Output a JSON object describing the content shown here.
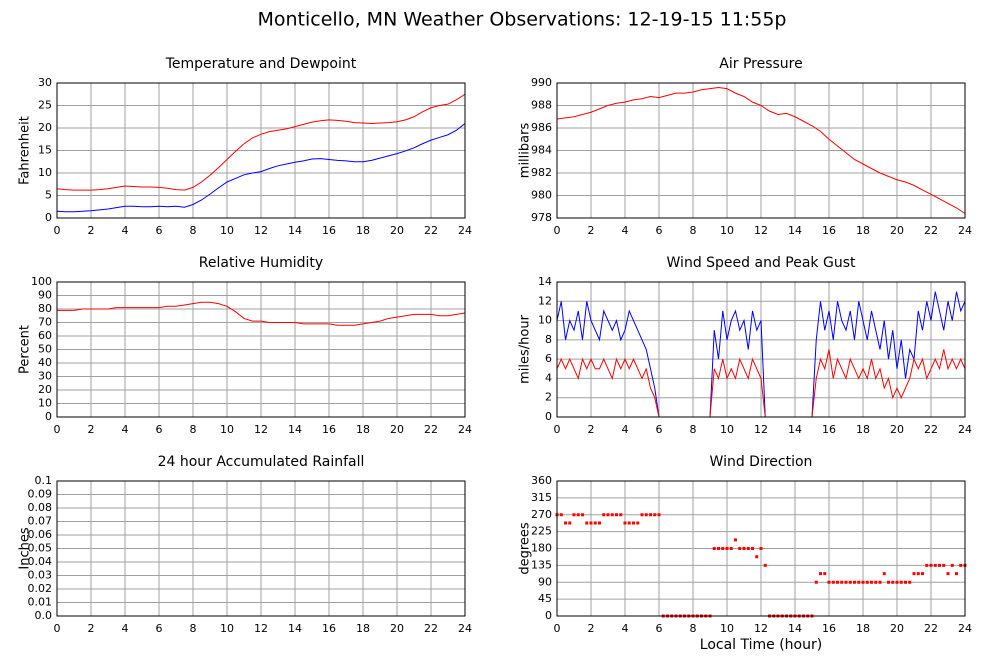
{
  "title": "Monticello, MN Weather Observations: 12-19-15 11:55p",
  "chart_data": [
    {
      "type": "line",
      "title": "Temperature and Dewpoint",
      "ylabel": "Fahrenheit",
      "grid": true,
      "xlim": [
        0,
        24
      ],
      "xticks": [
        0,
        2,
        4,
        6,
        8,
        10,
        12,
        14,
        16,
        18,
        20,
        22,
        24
      ],
      "ylim": [
        0,
        30
      ],
      "yticks": [
        0,
        5,
        10,
        15,
        20,
        25,
        30
      ],
      "x": [
        0,
        0.5,
        1,
        1.5,
        2,
        2.5,
        3,
        3.5,
        4,
        4.5,
        5,
        5.5,
        6,
        6.5,
        7,
        7.5,
        8,
        8.5,
        9,
        9.5,
        10,
        10.5,
        11,
        11.5,
        12,
        12.5,
        13,
        13.5,
        14,
        14.5,
        15,
        15.5,
        16,
        16.5,
        17,
        17.5,
        18,
        18.5,
        19,
        19.5,
        20,
        20.5,
        21,
        21.5,
        22,
        22.5,
        23,
        23.5,
        24
      ],
      "series": [
        {
          "color": "#ff0000",
          "values": [
            6.5,
            6.3,
            6.2,
            6.2,
            6.2,
            6.3,
            6.5,
            6.8,
            7.1,
            7.0,
            6.9,
            6.9,
            6.8,
            6.6,
            6.3,
            6.2,
            6.8,
            8.0,
            9.5,
            11.2,
            13.0,
            14.8,
            16.5,
            17.8,
            18.6,
            19.2,
            19.5,
            19.8,
            20.3,
            20.8,
            21.3,
            21.6,
            21.8,
            21.7,
            21.5,
            21.2,
            21.1,
            21.0,
            21.1,
            21.2,
            21.4,
            21.8,
            22.5,
            23.6,
            24.5,
            25.0,
            25.3,
            26.3,
            27.5
          ]
        },
        {
          "color": "#0000ff",
          "values": [
            1.5,
            1.4,
            1.4,
            1.5,
            1.6,
            1.8,
            2.0,
            2.3,
            2.6,
            2.6,
            2.5,
            2.5,
            2.6,
            2.5,
            2.6,
            2.4,
            3.0,
            4.0,
            5.3,
            6.7,
            8.0,
            8.8,
            9.6,
            10.0,
            10.3,
            11.0,
            11.6,
            12.0,
            12.4,
            12.7,
            13.1,
            13.2,
            13.0,
            12.8,
            12.7,
            12.5,
            12.5,
            12.8,
            13.3,
            13.8,
            14.3,
            14.9,
            15.6,
            16.5,
            17.3,
            17.9,
            18.5,
            19.5,
            21.0
          ]
        }
      ]
    },
    {
      "type": "line",
      "title": "Air Pressure",
      "ylabel": "millibars",
      "grid": true,
      "xlim": [
        0,
        24
      ],
      "xticks": [
        0,
        2,
        4,
        6,
        8,
        10,
        12,
        14,
        16,
        18,
        20,
        22,
        24
      ],
      "ylim": [
        978,
        990
      ],
      "yticks": [
        978,
        980,
        982,
        984,
        986,
        988,
        990
      ],
      "x": [
        0,
        0.5,
        1,
        1.5,
        2,
        2.5,
        3,
        3.5,
        4,
        4.5,
        5,
        5.5,
        6,
        6.5,
        7,
        7.5,
        8,
        8.5,
        9,
        9.5,
        10,
        10.5,
        11,
        11.5,
        12,
        12.5,
        13,
        13.5,
        14,
        14.5,
        15,
        15.5,
        16,
        16.5,
        17,
        17.5,
        18,
        18.5,
        19,
        19.5,
        20,
        20.5,
        21,
        21.5,
        22,
        22.5,
        23,
        23.5,
        24
      ],
      "series": [
        {
          "color": "#ff0000",
          "values": [
            986.8,
            986.9,
            987.0,
            987.2,
            987.4,
            987.7,
            988.0,
            988.2,
            988.3,
            988.5,
            988.6,
            988.8,
            988.7,
            988.9,
            989.1,
            989.1,
            989.2,
            989.4,
            989.5,
            989.6,
            989.5,
            989.1,
            988.8,
            988.3,
            988.0,
            987.5,
            987.2,
            987.3,
            987.0,
            986.6,
            986.2,
            985.7,
            985.0,
            984.4,
            983.8,
            983.2,
            982.8,
            982.4,
            982.0,
            981.7,
            981.4,
            981.2,
            980.9,
            980.5,
            980.1,
            979.7,
            979.3,
            978.9,
            978.4
          ]
        }
      ]
    },
    {
      "type": "line",
      "title": "Relative Humidity",
      "ylabel": "Percent",
      "grid": true,
      "xlim": [
        0,
        24
      ],
      "xticks": [
        0,
        2,
        4,
        6,
        8,
        10,
        12,
        14,
        16,
        18,
        20,
        22,
        24
      ],
      "ylim": [
        0,
        100
      ],
      "yticks": [
        0,
        10,
        20,
        30,
        40,
        50,
        60,
        70,
        80,
        90,
        100
      ],
      "x": [
        0,
        0.5,
        1,
        1.5,
        2,
        2.5,
        3,
        3.5,
        4,
        4.5,
        5,
        5.5,
        6,
        6.5,
        7,
        7.5,
        8,
        8.5,
        9,
        9.5,
        10,
        10.5,
        11,
        11.5,
        12,
        12.5,
        13,
        13.5,
        14,
        14.5,
        15,
        15.5,
        16,
        16.5,
        17,
        17.5,
        18,
        18.5,
        19,
        19.5,
        20,
        20.5,
        21,
        21.5,
        22,
        22.5,
        23,
        23.5,
        24
      ],
      "series": [
        {
          "color": "#ff0000",
          "values": [
            79,
            79,
            79,
            80,
            80,
            80,
            80,
            81,
            81,
            81,
            81,
            81,
            81,
            82,
            82,
            83,
            84,
            85,
            85,
            84,
            82,
            78,
            73,
            71,
            71,
            70,
            70,
            70,
            70,
            69,
            69,
            69,
            69,
            68,
            68,
            68,
            69,
            70,
            71,
            73,
            74,
            75,
            76,
            76,
            76,
            75,
            75,
            76,
            77
          ]
        }
      ]
    },
    {
      "type": "line",
      "title": "Wind Speed and Peak Gust",
      "ylabel": "miles/hour",
      "grid": true,
      "xlim": [
        0,
        24
      ],
      "xticks": [
        0,
        2,
        4,
        6,
        8,
        10,
        12,
        14,
        16,
        18,
        20,
        22,
        24
      ],
      "ylim": [
        0,
        14
      ],
      "yticks": [
        0,
        2,
        4,
        6,
        8,
        10,
        12,
        14
      ],
      "x": [
        0,
        0.25,
        0.5,
        0.75,
        1,
        1.25,
        1.5,
        1.75,
        2,
        2.25,
        2.5,
        2.75,
        3,
        3.25,
        3.5,
        3.75,
        4,
        4.25,
        4.5,
        4.75,
        5,
        5.25,
        5.5,
        5.75,
        6,
        6.25,
        6.5,
        6.75,
        7,
        7.25,
        7.5,
        7.75,
        8,
        8.25,
        8.5,
        8.75,
        9,
        9.25,
        9.5,
        9.75,
        10,
        10.25,
        10.5,
        10.75,
        11,
        11.25,
        11.5,
        11.75,
        12,
        12.25,
        12.5,
        12.75,
        13,
        13.25,
        13.5,
        13.75,
        14,
        14.25,
        14.5,
        14.75,
        15,
        15.25,
        15.5,
        15.75,
        16,
        16.25,
        16.5,
        16.75,
        17,
        17.25,
        17.5,
        17.75,
        18,
        18.25,
        18.5,
        18.75,
        19,
        19.25,
        19.5,
        19.75,
        20,
        20.25,
        20.5,
        20.75,
        21,
        21.25,
        21.5,
        21.75,
        22,
        22.25,
        22.5,
        22.75,
        23,
        23.25,
        23.5,
        23.75,
        24
      ],
      "series": [
        {
          "color": "#0000ff",
          "values": [
            10,
            12,
            8,
            10,
            9,
            11,
            8,
            12,
            10,
            9,
            8,
            11,
            10,
            9,
            10,
            8,
            9,
            11,
            10,
            9,
            8,
            7,
            5,
            3,
            0,
            0,
            0,
            0,
            0,
            0,
            0,
            0,
            0,
            0,
            0,
            0,
            0,
            9,
            6,
            11,
            8,
            10,
            11,
            9,
            10,
            7,
            11,
            9,
            10,
            0,
            0,
            0,
            0,
            0,
            0,
            0,
            0,
            0,
            0,
            0,
            0,
            8,
            12,
            9,
            11,
            8,
            12,
            10,
            9,
            11,
            8,
            12,
            10,
            8,
            11,
            9,
            7,
            10,
            6,
            9,
            5,
            8,
            4,
            7,
            6,
            11,
            9,
            12,
            10,
            13,
            11,
            9,
            12,
            10,
            13,
            11,
            12
          ]
        },
        {
          "color": "#ff0000",
          "values": [
            5,
            6,
            5,
            6,
            5,
            4,
            6,
            5,
            6,
            5,
            5,
            6,
            5,
            4,
            6,
            5,
            6,
            5,
            6,
            5,
            4,
            5,
            3,
            2,
            0,
            0,
            0,
            0,
            0,
            0,
            0,
            0,
            0,
            0,
            0,
            0,
            0,
            5,
            4,
            6,
            4,
            5,
            4,
            6,
            5,
            4,
            6,
            5,
            4,
            0,
            0,
            0,
            0,
            0,
            0,
            0,
            0,
            0,
            0,
            0,
            0,
            4,
            6,
            5,
            7,
            4,
            6,
            5,
            4,
            6,
            5,
            4,
            5,
            4,
            6,
            4,
            5,
            3,
            4,
            2,
            3,
            2,
            3,
            4,
            6,
            5,
            6,
            4,
            5,
            6,
            5,
            7,
            5,
            6,
            5,
            6,
            5
          ]
        }
      ]
    },
    {
      "type": "line",
      "title": "24 hour Accumulated Rainfall",
      "ylabel": "Inches",
      "grid": true,
      "xlim": [
        0,
        24
      ],
      "xticks": [
        0,
        2,
        4,
        6,
        8,
        10,
        12,
        14,
        16,
        18,
        20,
        22,
        24
      ],
      "ylim": [
        0,
        0.1
      ],
      "yticks": [
        {
          "value": 0,
          "label": "0.0"
        },
        0.01,
        0.02,
        0.03,
        0.04,
        0.05,
        0.06,
        0.07,
        0.08,
        0.09,
        0.1
      ],
      "x": [
        0,
        24
      ],
      "series": [
        {
          "color": "#ff0000",
          "values": [
            0,
            0
          ]
        }
      ]
    },
    {
      "type": "scatter",
      "title": "Wind Direction",
      "ylabel": "degrees",
      "xlabel": "Local Time (hour)",
      "grid": true,
      "xlim": [
        0,
        24
      ],
      "xticks": [
        0,
        2,
        4,
        6,
        8,
        10,
        12,
        14,
        16,
        18,
        20,
        22,
        24
      ],
      "ylim": [
        0,
        360
      ],
      "yticks": [
        0,
        45,
        90,
        135,
        180,
        225,
        270,
        315,
        360
      ],
      "x": [
        0,
        0.25,
        0.5,
        0.75,
        1,
        1.25,
        1.5,
        1.75,
        2,
        2.25,
        2.5,
        2.75,
        3,
        3.25,
        3.5,
        3.75,
        4,
        4.25,
        4.5,
        4.75,
        5,
        5.25,
        5.5,
        5.75,
        6,
        6.25,
        6.5,
        6.75,
        7,
        7.25,
        7.5,
        7.75,
        8,
        8.25,
        8.5,
        8.75,
        9,
        9.25,
        9.5,
        9.75,
        10,
        10.25,
        10.5,
        10.75,
        11,
        11.25,
        11.5,
        11.75,
        12,
        12.25,
        12.5,
        12.75,
        13,
        13.25,
        13.5,
        13.75,
        14,
        14.25,
        14.5,
        14.75,
        15,
        15.25,
        15.5,
        15.75,
        16,
        16.25,
        16.5,
        16.75,
        17,
        17.25,
        17.5,
        17.75,
        18,
        18.25,
        18.5,
        18.75,
        19,
        19.25,
        19.5,
        19.75,
        20,
        20.25,
        20.5,
        20.75,
        21,
        21.25,
        21.5,
        21.75,
        22,
        22.25,
        22.5,
        22.75,
        23,
        23.25,
        23.5,
        23.75,
        24
      ],
      "series": [
        {
          "color": "#ff0000",
          "values": [
            270,
            270,
            248,
            248,
            270,
            270,
            270,
            248,
            248,
            248,
            248,
            270,
            270,
            270,
            270,
            270,
            248,
            248,
            248,
            248,
            270,
            270,
            270,
            270,
            270,
            0,
            0,
            0,
            0,
            0,
            0,
            0,
            0,
            0,
            0,
            0,
            0,
            180,
            180,
            180,
            180,
            180,
            203,
            180,
            180,
            180,
            180,
            158,
            180,
            135,
            0,
            0,
            0,
            0,
            0,
            0,
            0,
            0,
            0,
            0,
            0,
            90,
            113,
            113,
            90,
            90,
            90,
            90,
            90,
            90,
            90,
            90,
            90,
            90,
            90,
            90,
            90,
            113,
            90,
            90,
            90,
            90,
            90,
            90,
            113,
            113,
            113,
            135,
            135,
            135,
            135,
            135,
            113,
            135,
            113,
            135,
            135
          ]
        }
      ]
    }
  ]
}
